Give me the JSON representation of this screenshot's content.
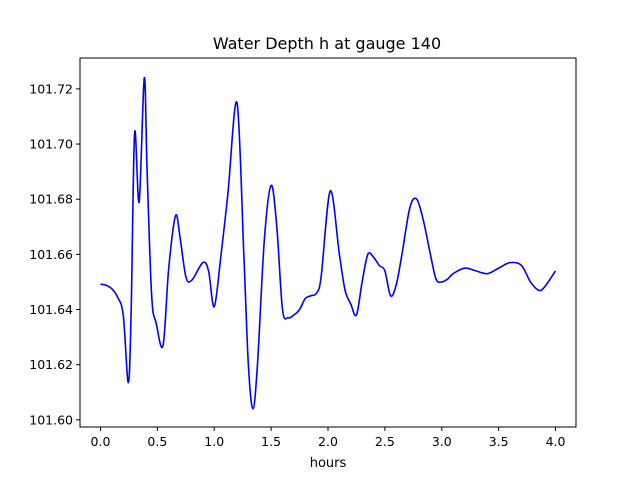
{
  "chart_data": {
    "type": "line",
    "title": "Water Depth h at gauge 140",
    "xlabel": "hours",
    "ylabel": "",
    "xlim": [
      -0.18,
      4.18
    ],
    "ylim": [
      101.5974,
      101.7312
    ],
    "x_ticks": [
      0.0,
      0.5,
      1.0,
      1.5,
      2.0,
      2.5,
      3.0,
      3.5,
      4.0
    ],
    "x_tick_labels": [
      "0.0",
      "0.5",
      "1.0",
      "1.5",
      "2.0",
      "2.5",
      "3.0",
      "3.5",
      "4.0"
    ],
    "y_ticks": [
      101.6,
      101.62,
      101.64,
      101.66,
      101.68,
      101.7,
      101.72
    ],
    "y_tick_labels": [
      "101.60",
      "101.62",
      "101.64",
      "101.66",
      "101.68",
      "101.70",
      "101.72"
    ],
    "grid": false,
    "legend": "none",
    "series": [
      {
        "color": "#0000ff",
        "x": [
          0.0,
          0.05,
          0.1,
          0.15,
          0.2,
          0.245,
          0.27,
          0.3,
          0.34,
          0.385,
          0.41,
          0.45,
          0.49,
          0.55,
          0.6,
          0.66,
          0.7,
          0.75,
          0.8,
          0.9,
          0.95,
          1.0,
          1.06,
          1.12,
          1.2,
          1.26,
          1.3,
          1.34,
          1.38,
          1.44,
          1.5,
          1.55,
          1.6,
          1.65,
          1.7,
          1.75,
          1.8,
          1.85,
          1.9,
          1.94,
          2.02,
          2.1,
          2.15,
          2.2,
          2.25,
          2.3,
          2.35,
          2.4,
          2.45,
          2.5,
          2.55,
          2.6,
          2.65,
          2.72,
          2.78,
          2.84,
          2.9,
          2.95,
          3.0,
          3.05,
          3.1,
          3.2,
          3.3,
          3.4,
          3.5,
          3.6,
          3.7,
          3.78,
          3.85,
          3.9,
          4.0
        ],
        "y": [
          101.6492,
          101.6488,
          101.6475,
          101.6445,
          101.638,
          101.6135,
          101.64,
          101.704,
          101.679,
          101.724,
          101.69,
          101.645,
          101.635,
          101.627,
          101.655,
          101.674,
          101.666,
          101.652,
          101.6505,
          101.657,
          101.654,
          101.641,
          101.66,
          101.682,
          101.715,
          101.66,
          101.62,
          101.604,
          101.62,
          101.665,
          101.685,
          101.67,
          101.64,
          101.637,
          101.638,
          101.64,
          101.644,
          101.645,
          101.646,
          101.652,
          101.683,
          101.66,
          101.647,
          101.642,
          101.638,
          101.65,
          101.66,
          101.659,
          101.656,
          101.654,
          101.645,
          101.649,
          101.66,
          101.677,
          101.68,
          101.672,
          101.66,
          101.651,
          101.65,
          101.651,
          101.653,
          101.655,
          101.654,
          101.653,
          101.655,
          101.657,
          101.656,
          101.65,
          101.647,
          101.648,
          101.654
        ]
      }
    ]
  }
}
